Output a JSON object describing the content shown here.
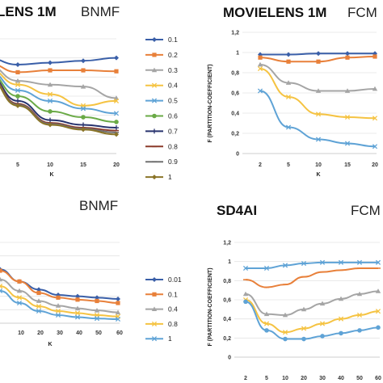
{
  "chart_data": [
    {
      "type": "line",
      "title": "LENS 1M",
      "method": "BNMF",
      "xlabel": "K",
      "ylabel": "",
      "xticks": [
        "5",
        "10",
        "15",
        "20"
      ],
      "x": [
        2,
        5,
        10,
        15,
        20
      ],
      "ylim": [
        0,
        1.2
      ],
      "legend_position": "right",
      "legend_title": "",
      "series": [
        {
          "name": "0.1",
          "color": "#3a5fa8",
          "marker": "diamond",
          "values": [
            1.0,
            0.93,
            0.95,
            0.97,
            1.0
          ]
        },
        {
          "name": "0.2",
          "color": "#e8803a",
          "marker": "square",
          "values": [
            0.95,
            0.85,
            0.87,
            0.87,
            0.86
          ]
        },
        {
          "name": "0.3",
          "color": "#a5a5a5",
          "marker": "triangle",
          "values": [
            0.93,
            0.76,
            0.72,
            0.7,
            0.58
          ]
        },
        {
          "name": "0.4",
          "color": "#f5c342",
          "marker": "x",
          "values": [
            0.9,
            0.72,
            0.62,
            0.5,
            0.55
          ]
        },
        {
          "name": "0.5",
          "color": "#5fa3d6",
          "marker": "x",
          "values": [
            0.88,
            0.66,
            0.55,
            0.47,
            0.42
          ]
        },
        {
          "name": "0.6",
          "color": "#6aaa46",
          "marker": "circle",
          "values": [
            0.86,
            0.6,
            0.44,
            0.38,
            0.33
          ]
        },
        {
          "name": "0.7",
          "color": "#28336e",
          "marker": "plus",
          "values": [
            0.84,
            0.55,
            0.35,
            0.3,
            0.27
          ]
        },
        {
          "name": "0.8",
          "color": "#8b3a2a",
          "marker": "dash",
          "values": [
            0.83,
            0.52,
            0.32,
            0.27,
            0.24
          ]
        },
        {
          "name": "0.9",
          "color": "#707070",
          "marker": "dash",
          "values": [
            0.82,
            0.51,
            0.31,
            0.26,
            0.22
          ]
        },
        {
          "name": "1",
          "color": "#8a7428",
          "marker": "diamond",
          "values": [
            0.81,
            0.5,
            0.3,
            0.25,
            0.2
          ]
        }
      ]
    },
    {
      "type": "line",
      "title": "MOVIELENS 1M",
      "method": "FCM",
      "xlabel": "K",
      "ylabel": "F (PARTITION-COEFFICIENT)",
      "xticks": [
        "2",
        "5",
        "10",
        "15",
        "20"
      ],
      "x": [
        2,
        5,
        10,
        15,
        20
      ],
      "ylim": [
        0,
        1.2
      ],
      "yticks": [
        "0",
        "0,2",
        "0,4",
        "0,6",
        "0,8",
        "1",
        "1,2"
      ],
      "series": [
        {
          "color": "#3a5fa8",
          "marker": "diamond",
          "values": [
            0.98,
            0.98,
            0.99,
            0.99,
            0.99
          ]
        },
        {
          "color": "#e8803a",
          "marker": "square",
          "values": [
            0.95,
            0.91,
            0.91,
            0.95,
            0.96
          ]
        },
        {
          "color": "#a5a5a5",
          "marker": "triangle",
          "values": [
            0.88,
            0.7,
            0.62,
            0.62,
            0.64
          ]
        },
        {
          "color": "#f5c342",
          "marker": "x",
          "values": [
            0.84,
            0.56,
            0.39,
            0.36,
            0.35
          ]
        },
        {
          "color": "#5fa3d6",
          "marker": "x",
          "values": [
            0.62,
            0.26,
            0.14,
            0.1,
            0.07
          ]
        }
      ]
    },
    {
      "type": "line",
      "title": "",
      "method": "BNMF",
      "xlabel": "K",
      "ylabel": "",
      "xticks": [
        "10",
        "20",
        "30",
        "40",
        "50",
        "60"
      ],
      "x": [
        2,
        5,
        10,
        20,
        30,
        40,
        50,
        60
      ],
      "ylim": [
        0,
        1.2
      ],
      "legend_position": "right",
      "series": [
        {
          "name": "0.01",
          "color": "#3a5fa8",
          "marker": "diamond",
          "values": [
            0.9,
            0.8,
            0.62,
            0.5,
            0.42,
            0.4,
            0.38,
            0.36
          ]
        },
        {
          "name": "0.1",
          "color": "#e8803a",
          "marker": "square",
          "values": [
            0.88,
            0.78,
            0.62,
            0.45,
            0.38,
            0.35,
            0.33,
            0.3
          ]
        },
        {
          "name": "0.4",
          "color": "#a5a5a5",
          "marker": "triangle",
          "values": [
            0.8,
            0.65,
            0.48,
            0.33,
            0.26,
            0.22,
            0.19,
            0.16
          ]
        },
        {
          "name": "0.8",
          "color": "#f5c342",
          "marker": "x",
          "values": [
            0.72,
            0.55,
            0.38,
            0.25,
            0.18,
            0.15,
            0.12,
            0.1
          ]
        },
        {
          "name": "1",
          "color": "#5fa3d6",
          "marker": "x",
          "values": [
            0.65,
            0.48,
            0.3,
            0.18,
            0.12,
            0.09,
            0.07,
            0.06
          ]
        }
      ]
    },
    {
      "type": "line",
      "title": "SD4AI",
      "method": "FCM",
      "xlabel": "K",
      "ylabel": "F (PARTITION-COEFFICIENT)",
      "xticks": [
        "2",
        "5",
        "10",
        "20",
        "30",
        "40",
        "50",
        "60"
      ],
      "x": [
        2,
        5,
        10,
        20,
        30,
        40,
        50,
        60
      ],
      "ylim": [
        0,
        1.2
      ],
      "yticks": [
        "0",
        "0,2",
        "0,4",
        "0,6",
        "0,8",
        "1",
        "1,2"
      ],
      "series": [
        {
          "color": "#5fa3d6",
          "marker": "x",
          "values": [
            0.93,
            0.93,
            0.96,
            0.98,
            0.99,
            0.99,
            0.99,
            0.99
          ]
        },
        {
          "color": "#e8803a",
          "marker": "dash",
          "values": [
            0.81,
            0.73,
            0.76,
            0.84,
            0.89,
            0.91,
            0.93,
            0.93
          ]
        },
        {
          "color": "#a5a5a5",
          "marker": "triangle",
          "values": [
            0.66,
            0.45,
            0.44,
            0.5,
            0.56,
            0.61,
            0.66,
            0.69
          ]
        },
        {
          "color": "#f5c342",
          "marker": "x",
          "values": [
            0.6,
            0.35,
            0.26,
            0.3,
            0.35,
            0.4,
            0.44,
            0.48
          ]
        },
        {
          "color": "#5fa3d6",
          "marker": "circle",
          "values": [
            0.58,
            0.28,
            0.19,
            0.19,
            0.22,
            0.25,
            0.28,
            0.31
          ]
        }
      ]
    }
  ]
}
